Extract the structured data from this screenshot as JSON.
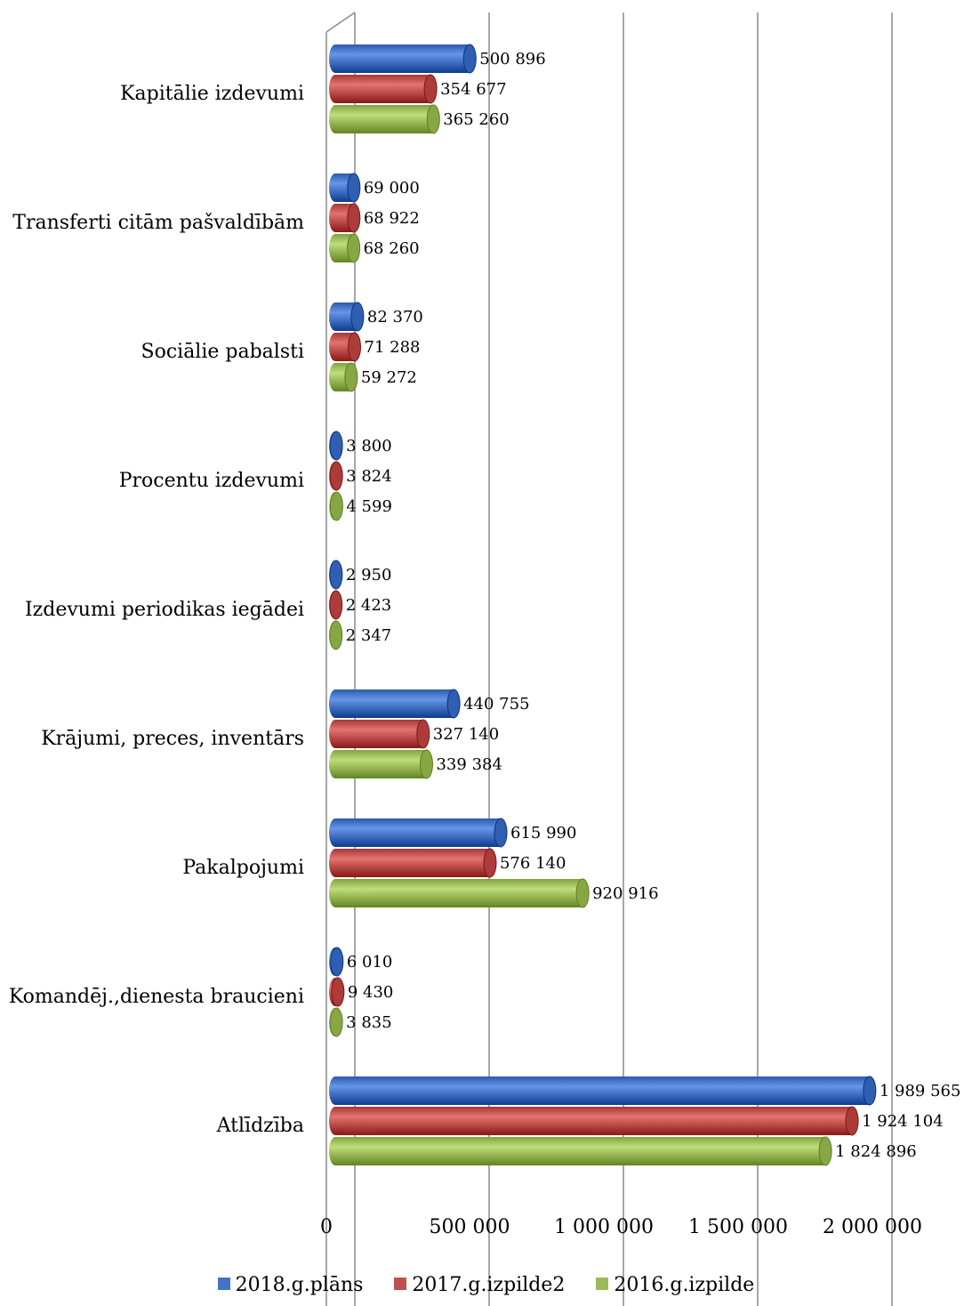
{
  "chart_data": {
    "type": "bar",
    "orientation": "horizontal",
    "style": "3d-cylinder",
    "categories": [
      "Kapitālie izdevumi",
      "Transferti citām pašvaldībām",
      "Sociālie pabalsti",
      "Procentu izdevumi",
      "Izdevumi periodikas iegādei",
      "Krājumi, preces, inventārs",
      "Pakalpojumi",
      "Komandēj.,dienesta braucieni",
      "Atlīdzība"
    ],
    "series": [
      {
        "name": "2018.g.plāns",
        "color": "#4472C4",
        "values": [
          500896,
          69000,
          82370,
          3800,
          2950,
          440755,
          615990,
          6010,
          1989565
        ],
        "labels": [
          "500 896",
          "69 000",
          "82 370",
          "3 800",
          "2 950",
          "440 755",
          "615 990",
          "6 010",
          "1 989 565"
        ]
      },
      {
        "name": "2017.g.izpilde2",
        "color": "#C0504D",
        "values": [
          354677,
          68922,
          71288,
          3824,
          2423,
          327140,
          576140,
          9430,
          1924104
        ],
        "labels": [
          "354 677",
          "68 922",
          "71 288",
          "3 824",
          "2 423",
          "327 140",
          "576 140",
          "9 430",
          "1 924 104"
        ]
      },
      {
        "name": "2016.g.izpilde",
        "color": "#9BBB59",
        "values": [
          365260,
          68260,
          59272,
          4599,
          2347,
          339384,
          920916,
          3835,
          1824896
        ],
        "labels": [
          "365 260",
          "68 260",
          "59 272",
          "4 599",
          "2 347",
          "339 384",
          "920 916",
          "3 835",
          "1 824 896"
        ]
      }
    ],
    "xaxis": {
      "ticks": [
        0,
        500000,
        1000000,
        1500000,
        2000000
      ],
      "tick_labels": [
        "0",
        "500 000",
        "1 000 000",
        "1 500 000",
        "2 000 000"
      ],
      "xlim": [
        0,
        2000000
      ]
    },
    "grid": true,
    "legend": "bottom"
  }
}
